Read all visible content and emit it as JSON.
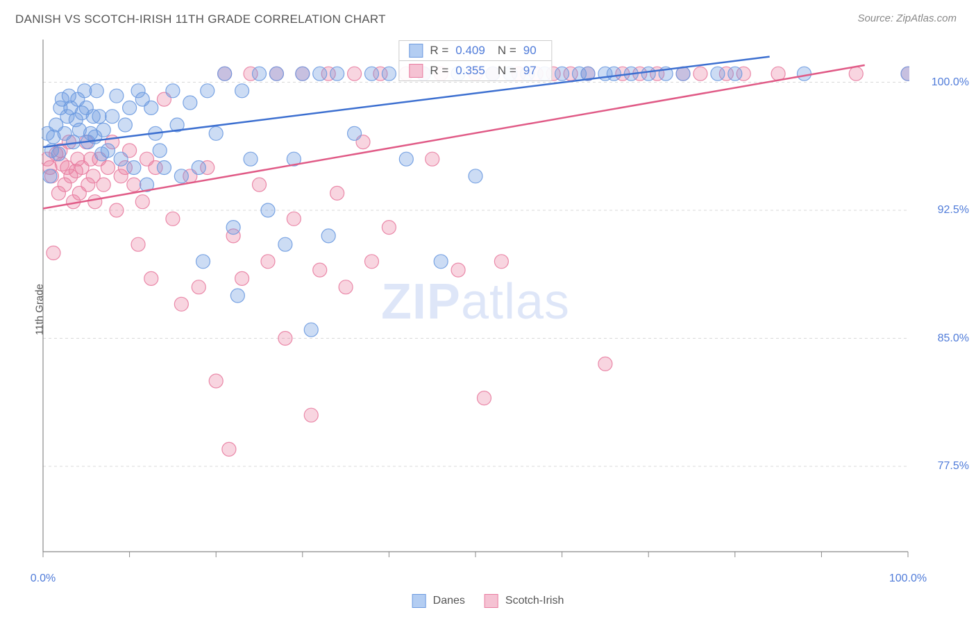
{
  "title": "DANISH VS SCOTCH-IRISH 11TH GRADE CORRELATION CHART",
  "source": "Source: ZipAtlas.com",
  "y_axis_label": "11th Grade",
  "watermark_bold": "ZIP",
  "watermark_light": "atlas",
  "chart": {
    "type": "scatter",
    "background_color": "#ffffff",
    "grid_color": "#d8d8d8",
    "grid_dash": "4 4",
    "axis_line_color": "#888888",
    "plot_border_width": 1,
    "xlim": [
      0,
      100
    ],
    "ylim": [
      72.5,
      102.5
    ],
    "y_ticks": [
      {
        "value": 100.0,
        "label": "100.0%"
      },
      {
        "value": 92.5,
        "label": "92.5%"
      },
      {
        "value": 85.0,
        "label": "85.0%"
      },
      {
        "value": 77.5,
        "label": "77.5%"
      }
    ],
    "x_ticks_minor": [
      0,
      10,
      20,
      30,
      40,
      50,
      60,
      70,
      80,
      90,
      100
    ],
    "x_tick_labels": [
      {
        "value": 0,
        "label": "0.0%"
      },
      {
        "value": 100,
        "label": "100.0%"
      }
    ],
    "tick_label_color": "#4f7bd9",
    "tick_label_fontsize": 16,
    "series": [
      {
        "name": "Danes",
        "color": "#6c9ae0",
        "fill_opacity": 0.35,
        "stroke_opacity": 0.9,
        "marker_radius": 10,
        "line_color": "#3c6fd0",
        "line_width": 2.5,
        "regression": {
          "x1": 0,
          "y1": 96.2,
          "x2": 84,
          "y2": 101.5
        },
        "stats": {
          "R": "0.409",
          "N": "90"
        },
        "points": [
          [
            0.5,
            97.0
          ],
          [
            0.8,
            94.5
          ],
          [
            1.0,
            96.0
          ],
          [
            1.2,
            96.8
          ],
          [
            1.5,
            97.5
          ],
          [
            1.8,
            95.8
          ],
          [
            2.0,
            98.5
          ],
          [
            2.2,
            99.0
          ],
          [
            2.5,
            97.0
          ],
          [
            2.8,
            98.0
          ],
          [
            3.0,
            99.2
          ],
          [
            3.2,
            98.5
          ],
          [
            3.5,
            96.5
          ],
          [
            3.8,
            97.8
          ],
          [
            4.0,
            99.0
          ],
          [
            4.2,
            97.2
          ],
          [
            4.5,
            98.2
          ],
          [
            4.8,
            99.5
          ],
          [
            5.0,
            98.5
          ],
          [
            5.2,
            96.5
          ],
          [
            5.5,
            97.0
          ],
          [
            5.8,
            98.0
          ],
          [
            6.0,
            96.8
          ],
          [
            6.2,
            99.5
          ],
          [
            6.5,
            98.0
          ],
          [
            6.8,
            95.8
          ],
          [
            7.0,
            97.2
          ],
          [
            7.5,
            96.0
          ],
          [
            8.0,
            98.0
          ],
          [
            8.5,
            99.2
          ],
          [
            9.0,
            95.5
          ],
          [
            9.5,
            97.5
          ],
          [
            10.0,
            98.5
          ],
          [
            10.5,
            95.0
          ],
          [
            11.0,
            99.5
          ],
          [
            11.5,
            99.0
          ],
          [
            12.0,
            94.0
          ],
          [
            12.5,
            98.5
          ],
          [
            13.0,
            97.0
          ],
          [
            13.5,
            96.0
          ],
          [
            14.0,
            95.0
          ],
          [
            15.0,
            99.5
          ],
          [
            15.5,
            97.5
          ],
          [
            16.0,
            94.5
          ],
          [
            17.0,
            98.8
          ],
          [
            18.0,
            95.0
          ],
          [
            18.5,
            89.5
          ],
          [
            19.0,
            99.5
          ],
          [
            20.0,
            97.0
          ],
          [
            21.0,
            100.5
          ],
          [
            22.0,
            91.5
          ],
          [
            22.5,
            87.5
          ],
          [
            23.0,
            99.5
          ],
          [
            24.0,
            95.5
          ],
          [
            25.0,
            100.5
          ],
          [
            26.0,
            92.5
          ],
          [
            27.0,
            100.5
          ],
          [
            28.0,
            90.5
          ],
          [
            29.0,
            95.5
          ],
          [
            30.0,
            100.5
          ],
          [
            31.0,
            85.5
          ],
          [
            32.0,
            100.5
          ],
          [
            33.0,
            91.0
          ],
          [
            34.0,
            100.5
          ],
          [
            36.0,
            97.0
          ],
          [
            38.0,
            100.5
          ],
          [
            40.0,
            100.5
          ],
          [
            42.0,
            95.5
          ],
          [
            44.0,
            100.5
          ],
          [
            46.0,
            89.5
          ],
          [
            48.0,
            100.5
          ],
          [
            50.0,
            94.5
          ],
          [
            52.0,
            100.5
          ],
          [
            54.0,
            100.5
          ],
          [
            56.0,
            100.5
          ],
          [
            58.0,
            100.5
          ],
          [
            60.0,
            100.5
          ],
          [
            62.0,
            100.5
          ],
          [
            63.0,
            100.5
          ],
          [
            65.0,
            100.5
          ],
          [
            66.0,
            100.5
          ],
          [
            68.0,
            100.5
          ],
          [
            70.0,
            100.5
          ],
          [
            72.0,
            100.5
          ],
          [
            74.0,
            100.5
          ],
          [
            78.0,
            100.5
          ],
          [
            80.0,
            100.5
          ],
          [
            88.0,
            100.5
          ],
          [
            100.0,
            100.5
          ]
        ]
      },
      {
        "name": "Scotch-Irish",
        "color": "#e87ca0",
        "fill_opacity": 0.32,
        "stroke_opacity": 0.9,
        "marker_radius": 10,
        "line_color": "#e05a86",
        "line_width": 2.5,
        "regression": {
          "x1": 0,
          "y1": 92.6,
          "x2": 95,
          "y2": 101.0
        },
        "stats": {
          "R": "0.355",
          "N": "97"
        },
        "points": [
          [
            0.5,
            95.5
          ],
          [
            0.8,
            95.0
          ],
          [
            1.0,
            94.5
          ],
          [
            1.2,
            90.0
          ],
          [
            1.5,
            95.8
          ],
          [
            1.8,
            93.5
          ],
          [
            2.0,
            96.0
          ],
          [
            2.2,
            95.2
          ],
          [
            2.5,
            94.0
          ],
          [
            2.8,
            95.0
          ],
          [
            3.0,
            96.5
          ],
          [
            3.2,
            94.5
          ],
          [
            3.5,
            93.0
          ],
          [
            3.8,
            94.8
          ],
          [
            4.0,
            95.5
          ],
          [
            4.2,
            93.5
          ],
          [
            4.5,
            95.0
          ],
          [
            5.0,
            96.5
          ],
          [
            5.2,
            94.0
          ],
          [
            5.5,
            95.5
          ],
          [
            5.8,
            94.5
          ],
          [
            6.0,
            93.0
          ],
          [
            6.5,
            95.5
          ],
          [
            7.0,
            94.0
          ],
          [
            7.5,
            95.0
          ],
          [
            8.0,
            96.5
          ],
          [
            8.5,
            92.5
          ],
          [
            9.0,
            94.5
          ],
          [
            9.5,
            95.0
          ],
          [
            10.0,
            96.0
          ],
          [
            10.5,
            94.0
          ],
          [
            11.0,
            90.5
          ],
          [
            11.5,
            93.0
          ],
          [
            12.0,
            95.5
          ],
          [
            12.5,
            88.5
          ],
          [
            13.0,
            95.0
          ],
          [
            14.0,
            99.0
          ],
          [
            15.0,
            92.0
          ],
          [
            16.0,
            87.0
          ],
          [
            17.0,
            94.5
          ],
          [
            18.0,
            88.0
          ],
          [
            19.0,
            95.0
          ],
          [
            20.0,
            82.5
          ],
          [
            21.0,
            100.5
          ],
          [
            21.5,
            78.5
          ],
          [
            22.0,
            91.0
          ],
          [
            23.0,
            88.5
          ],
          [
            24.0,
            100.5
          ],
          [
            25.0,
            94.0
          ],
          [
            26.0,
            89.5
          ],
          [
            27.0,
            100.5
          ],
          [
            28.0,
            85.0
          ],
          [
            29.0,
            92.0
          ],
          [
            30.0,
            100.5
          ],
          [
            31.0,
            80.5
          ],
          [
            32.0,
            89.0
          ],
          [
            33.0,
            100.5
          ],
          [
            34.0,
            93.5
          ],
          [
            35.0,
            88.0
          ],
          [
            36.0,
            100.5
          ],
          [
            37.0,
            96.5
          ],
          [
            38.0,
            89.5
          ],
          [
            39.0,
            100.5
          ],
          [
            40.0,
            91.5
          ],
          [
            42.0,
            100.5
          ],
          [
            44.0,
            100.5
          ],
          [
            45.0,
            95.5
          ],
          [
            46.0,
            100.5
          ],
          [
            48.0,
            89.0
          ],
          [
            50.0,
            100.5
          ],
          [
            51.0,
            81.5
          ],
          [
            52.0,
            100.5
          ],
          [
            53.0,
            89.5
          ],
          [
            55.0,
            100.5
          ],
          [
            57.0,
            100.5
          ],
          [
            59.0,
            100.5
          ],
          [
            61.0,
            100.5
          ],
          [
            63.0,
            100.5
          ],
          [
            65.0,
            83.5
          ],
          [
            67.0,
            100.5
          ],
          [
            69.0,
            100.5
          ],
          [
            71.0,
            100.5
          ],
          [
            74.0,
            100.5
          ],
          [
            76.0,
            100.5
          ],
          [
            79.0,
            100.5
          ],
          [
            81.0,
            100.5
          ],
          [
            85.0,
            100.5
          ],
          [
            94.0,
            100.5
          ],
          [
            100.0,
            100.5
          ]
        ]
      }
    ],
    "bottom_legend": [
      {
        "swatch_fill": "#b3cdf2",
        "swatch_stroke": "#6c9ae0",
        "label": "Danes"
      },
      {
        "swatch_fill": "#f5c2d3",
        "swatch_stroke": "#e87ca0",
        "label": "Scotch-Irish"
      }
    ],
    "stats_box": {
      "border_color": "#cccccc",
      "rows": [
        {
          "swatch_fill": "#b3cdf2",
          "swatch_stroke": "#6c9ae0",
          "R_label": "R =",
          "R": "0.409",
          "N_label": "N =",
          "N": "90"
        },
        {
          "swatch_fill": "#f5c2d3",
          "swatch_stroke": "#e87ca0",
          "R_label": "R =",
          "R": "0.355",
          "N_label": "N =",
          "N": "97"
        }
      ]
    }
  }
}
